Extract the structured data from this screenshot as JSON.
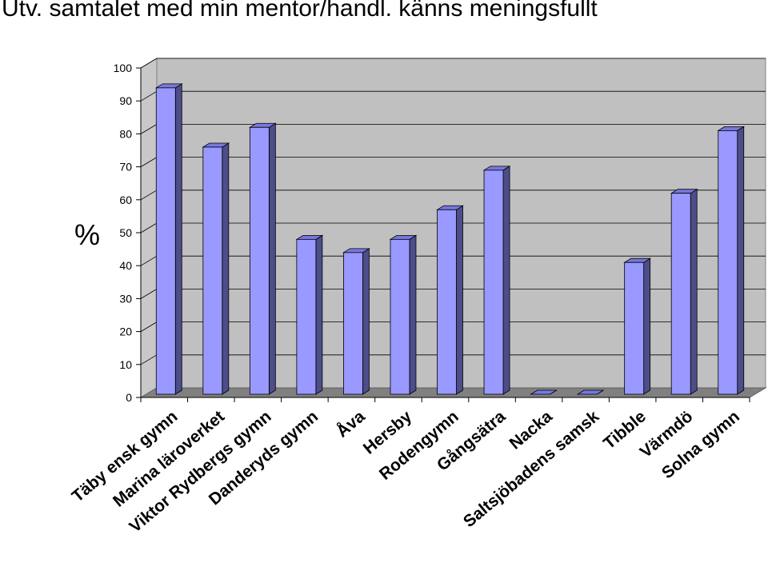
{
  "chart_data": {
    "type": "bar",
    "title": "Utv. samtalet med min mentor/handl. känns meningsfullt",
    "xlabel": "",
    "ylabel": "%",
    "ylim": [
      0,
      100
    ],
    "yticks": [
      0,
      10,
      20,
      30,
      40,
      50,
      60,
      70,
      80,
      90,
      100
    ],
    "grid": true,
    "legend": "none",
    "categories": [
      "Täby ensk gymn",
      "Marina läroverket",
      "Viktor Rydbergs gymn",
      "Danderyds gymn",
      "Åva",
      "Hersby",
      "Rodengymn",
      "Gångsätra",
      "Nacka",
      "Saltsjöbadens samsk",
      "Tibble",
      "Värmdö",
      "Solna gymn"
    ],
    "values": [
      93,
      75,
      81,
      47,
      43,
      47,
      56,
      68,
      0,
      0,
      40,
      61,
      80
    ],
    "colors": {
      "bar_front": "#9999ff",
      "bar_top": "#7777dd",
      "bar_side": "#4d4d8a",
      "back_wall": "#c0c0c0",
      "floor": "#808080",
      "left_wall": "#c8c8c8",
      "gridline": "#000000"
    }
  }
}
